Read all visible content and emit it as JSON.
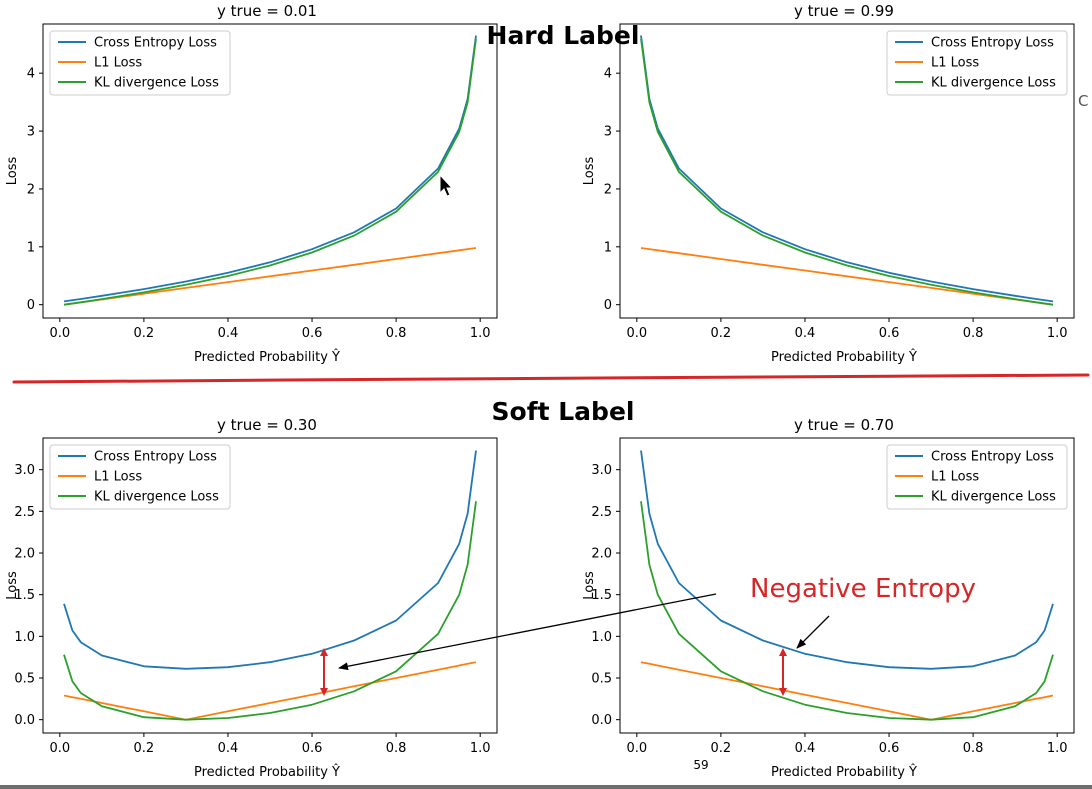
{
  "slide": {
    "hard_label_title": "Hard Label",
    "soft_label_title": "Soft Label",
    "page_number": "59",
    "edge_letter": "C"
  },
  "annotation": {
    "text": "Negative Entropy",
    "color": "#d62728"
  },
  "colors": {
    "cross_entropy": "#1f77b4",
    "l1": "#ff7f0e",
    "kl": "#2ca02c",
    "divider": "#d62728"
  },
  "chart_data": [
    {
      "type": "line",
      "title": "y true = 0.01",
      "xlabel": "Predicted Probability Ŷ",
      "ylabel": "Loss",
      "y_true": 0.01,
      "xlim": [
        -0.04,
        1.04
      ],
      "ylim": [
        -0.23,
        4.85
      ],
      "xticks": [
        "0.0",
        "0.2",
        "0.4",
        "0.6",
        "0.8",
        "1.0"
      ],
      "yticks": [
        "0",
        "1",
        "2",
        "3",
        "4"
      ],
      "legend_position": "top-left",
      "x": [
        0.01,
        0.05,
        0.1,
        0.2,
        0.3,
        0.4,
        0.5,
        0.6,
        0.7,
        0.8,
        0.9,
        0.95,
        0.97,
        0.99
      ],
      "series": [
        {
          "name": "Cross Entropy Loss",
          "values": [
            0.056,
            0.098,
            0.153,
            0.269,
            0.4,
            0.551,
            0.733,
            0.958,
            1.25,
            1.662,
            2.353,
            3.042,
            3.552,
            4.651
          ]
        },
        {
          "name": "L1 Loss",
          "values": [
            0.0,
            0.04,
            0.09,
            0.19,
            0.29,
            0.39,
            0.49,
            0.59,
            0.69,
            0.79,
            0.89,
            0.94,
            0.96,
            0.98
          ]
        },
        {
          "name": "KL divergence Loss",
          "values": [
            0.0,
            0.042,
            0.097,
            0.213,
            0.344,
            0.495,
            0.677,
            0.902,
            1.194,
            1.606,
            2.297,
            2.986,
            3.496,
            4.595
          ]
        }
      ]
    },
    {
      "type": "line",
      "title": "y true = 0.99",
      "xlabel": "Predicted Probability Ŷ",
      "ylabel": "Loss",
      "y_true": 0.99,
      "xlim": [
        -0.04,
        1.04
      ],
      "ylim": [
        -0.23,
        4.85
      ],
      "xticks": [
        "0.0",
        "0.2",
        "0.4",
        "0.6",
        "0.8",
        "1.0"
      ],
      "yticks": [
        "0",
        "1",
        "2",
        "3",
        "4"
      ],
      "legend_position": "top-right",
      "x": [
        0.01,
        0.03,
        0.05,
        0.1,
        0.2,
        0.3,
        0.4,
        0.5,
        0.6,
        0.7,
        0.8,
        0.9,
        0.95,
        0.99
      ],
      "series": [
        {
          "name": "Cross Entropy Loss",
          "values": [
            4.651,
            3.552,
            3.042,
            2.353,
            1.662,
            1.25,
            0.958,
            0.733,
            0.551,
            0.4,
            0.269,
            0.153,
            0.098,
            0.056
          ]
        },
        {
          "name": "L1 Loss",
          "values": [
            0.98,
            0.96,
            0.94,
            0.89,
            0.79,
            0.69,
            0.59,
            0.49,
            0.39,
            0.29,
            0.19,
            0.09,
            0.04,
            0.0
          ]
        },
        {
          "name": "KL divergence Loss",
          "values": [
            4.595,
            3.496,
            2.986,
            2.297,
            1.606,
            1.194,
            0.902,
            0.677,
            0.495,
            0.344,
            0.213,
            0.097,
            0.042,
            0.0
          ]
        }
      ]
    },
    {
      "type": "line",
      "title": "y true = 0.30",
      "xlabel": "Predicted Probability Ŷ",
      "ylabel": "Loss",
      "y_true": 0.3,
      "xlim": [
        -0.04,
        1.04
      ],
      "ylim": [
        -0.16,
        3.38
      ],
      "xticks": [
        "0.0",
        "0.2",
        "0.4",
        "0.6",
        "0.8",
        "1.0"
      ],
      "yticks": [
        "0.0",
        "0.5",
        "1.0",
        "1.5",
        "2.0",
        "2.5",
        "3.0"
      ],
      "legend_position": "top-left",
      "x": [
        0.01,
        0.03,
        0.05,
        0.1,
        0.2,
        0.3,
        0.4,
        0.5,
        0.6,
        0.7,
        0.8,
        0.9,
        0.95,
        0.97,
        0.99
      ],
      "series": [
        {
          "name": "Cross Entropy Loss",
          "values": [
            1.39,
            1.07,
            0.93,
            0.77,
            0.64,
            0.61,
            0.63,
            0.69,
            0.79,
            0.95,
            1.19,
            1.64,
            2.11,
            2.47,
            3.23
          ]
        },
        {
          "name": "L1 Loss",
          "values": [
            0.29,
            0.27,
            0.25,
            0.2,
            0.1,
            0.0,
            0.1,
            0.2,
            0.3,
            0.4,
            0.5,
            0.6,
            0.65,
            0.67,
            0.69
          ]
        },
        {
          "name": "KL divergence Loss",
          "values": [
            0.78,
            0.46,
            0.32,
            0.16,
            0.03,
            0.0,
            0.02,
            0.08,
            0.18,
            0.34,
            0.58,
            1.03,
            1.5,
            1.86,
            2.62
          ]
        }
      ]
    },
    {
      "type": "line",
      "title": "y true = 0.70",
      "xlabel": "Predicted Probability Ŷ",
      "ylabel": "Loss",
      "y_true": 0.7,
      "xlim": [
        -0.04,
        1.04
      ],
      "ylim": [
        -0.16,
        3.38
      ],
      "xticks": [
        "0.0",
        "0.2",
        "0.4",
        "0.6",
        "0.8",
        "1.0"
      ],
      "yticks": [
        "0.0",
        "0.5",
        "1.0",
        "1.5",
        "2.0",
        "2.5",
        "3.0"
      ],
      "legend_position": "top-right",
      "x": [
        0.01,
        0.03,
        0.05,
        0.1,
        0.2,
        0.3,
        0.4,
        0.5,
        0.6,
        0.7,
        0.8,
        0.9,
        0.95,
        0.97,
        0.99
      ],
      "series": [
        {
          "name": "Cross Entropy Loss",
          "values": [
            3.23,
            2.47,
            2.11,
            1.64,
            1.19,
            0.95,
            0.79,
            0.69,
            0.63,
            0.61,
            0.64,
            0.77,
            0.93,
            1.07,
            1.39
          ]
        },
        {
          "name": "L1 Loss",
          "values": [
            0.69,
            0.67,
            0.65,
            0.6,
            0.5,
            0.4,
            0.3,
            0.2,
            0.1,
            0.0,
            0.1,
            0.2,
            0.25,
            0.27,
            0.29
          ]
        },
        {
          "name": "KL divergence Loss",
          "values": [
            2.62,
            1.86,
            1.5,
            1.03,
            0.58,
            0.34,
            0.18,
            0.08,
            0.02,
            0.0,
            0.03,
            0.16,
            0.32,
            0.46,
            0.78
          ]
        }
      ]
    }
  ]
}
